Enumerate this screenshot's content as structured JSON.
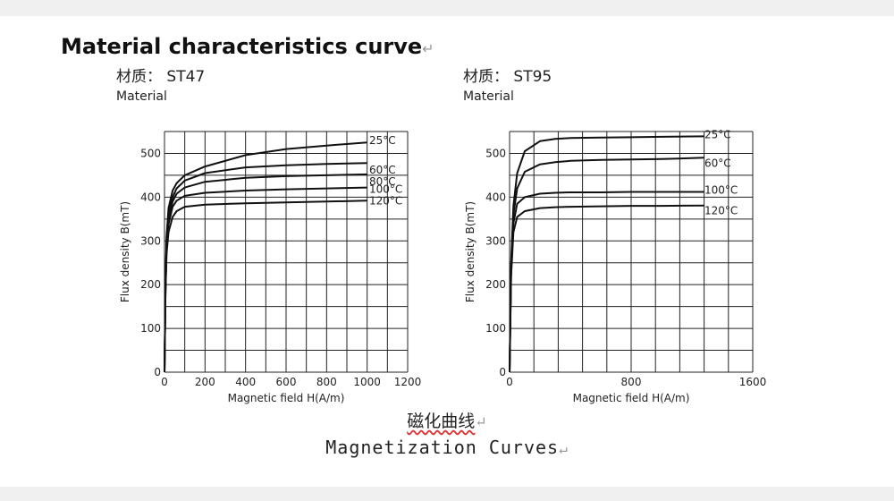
{
  "heading": {
    "title": "Material characteristics curve",
    "return_mark": "↵"
  },
  "caption": {
    "chinese": "磁化曲线",
    "english": "Magnetization Curves",
    "return_mark": "↵"
  },
  "chart_data": [
    {
      "type": "line",
      "material_cn": "材质：  ST47",
      "material_en": "Material",
      "xlabel": "Magnetic field H(A/m)",
      "ylabel": "Flux density B(mT)",
      "xlim": [
        0,
        1200
      ],
      "ylim": [
        0,
        550
      ],
      "xticks": [
        0,
        200,
        400,
        600,
        800,
        1000,
        1200
      ],
      "yticks": [
        0,
        100,
        200,
        300,
        400,
        500
      ],
      "grid": true,
      "series": [
        {
          "name": "25°C",
          "x": [
            0,
            5,
            10,
            20,
            40,
            60,
            100,
            200,
            400,
            600,
            800,
            1000
          ],
          "y": [
            0,
            200,
            310,
            375,
            415,
            432,
            450,
            470,
            496,
            510,
            518,
            525
          ]
        },
        {
          "name": "60°C",
          "x": [
            0,
            5,
            10,
            20,
            40,
            60,
            100,
            200,
            400,
            600,
            800,
            1000
          ],
          "y": [
            0,
            195,
            300,
            360,
            400,
            420,
            438,
            455,
            468,
            473,
            476,
            478
          ]
        },
        {
          "name": "80°C",
          "x": [
            0,
            5,
            10,
            20,
            40,
            60,
            100,
            200,
            400,
            600,
            800,
            1000
          ],
          "y": [
            0,
            190,
            290,
            350,
            390,
            408,
            422,
            435,
            444,
            448,
            450,
            452
          ]
        },
        {
          "name": "100°C",
          "x": [
            0,
            5,
            10,
            20,
            40,
            60,
            100,
            200,
            400,
            600,
            800,
            1000
          ],
          "y": [
            0,
            185,
            280,
            338,
            378,
            392,
            403,
            410,
            415,
            418,
            420,
            422
          ]
        },
        {
          "name": "120°C",
          "x": [
            0,
            5,
            10,
            20,
            40,
            60,
            100,
            200,
            400,
            600,
            800,
            1000
          ],
          "y": [
            0,
            180,
            270,
            320,
            355,
            368,
            378,
            383,
            386,
            388,
            390,
            392
          ]
        }
      ]
    },
    {
      "type": "line",
      "material_cn": "材质：  ST95",
      "material_en": "Material",
      "xlabel": "Magnetic field H(A/m)",
      "ylabel": "Flux density B(mT)",
      "xlim": [
        0,
        1600
      ],
      "ylim": [
        0,
        550
      ],
      "xticks": [
        0,
        800,
        1600
      ],
      "yticks": [
        0,
        100,
        200,
        300,
        400,
        500
      ],
      "grid": true,
      "series": [
        {
          "name": "25°C",
          "x": [
            0,
            10,
            25,
            50,
            100,
            200,
            300,
            400,
            600,
            800,
            1000,
            1280
          ],
          "y": [
            0,
            250,
            380,
            455,
            505,
            528,
            533,
            535,
            536,
            537,
            538,
            539
          ]
        },
        {
          "name": "60°C",
          "x": [
            0,
            10,
            25,
            50,
            100,
            200,
            300,
            400,
            600,
            800,
            1000,
            1280
          ],
          "y": [
            0,
            240,
            360,
            420,
            458,
            475,
            480,
            483,
            485,
            486,
            487,
            490
          ]
        },
        {
          "name": "100°C",
          "x": [
            0,
            10,
            25,
            50,
            100,
            200,
            300,
            400,
            600,
            800,
            1000,
            1280
          ],
          "y": [
            0,
            230,
            340,
            385,
            400,
            408,
            410,
            411,
            411,
            412,
            412,
            412
          ]
        },
        {
          "name": "120°C",
          "x": [
            0,
            10,
            25,
            50,
            100,
            200,
            300,
            400,
            600,
            800,
            1000,
            1280
          ],
          "y": [
            0,
            220,
            320,
            355,
            368,
            375,
            377,
            378,
            379,
            380,
            380,
            381
          ]
        }
      ]
    }
  ]
}
